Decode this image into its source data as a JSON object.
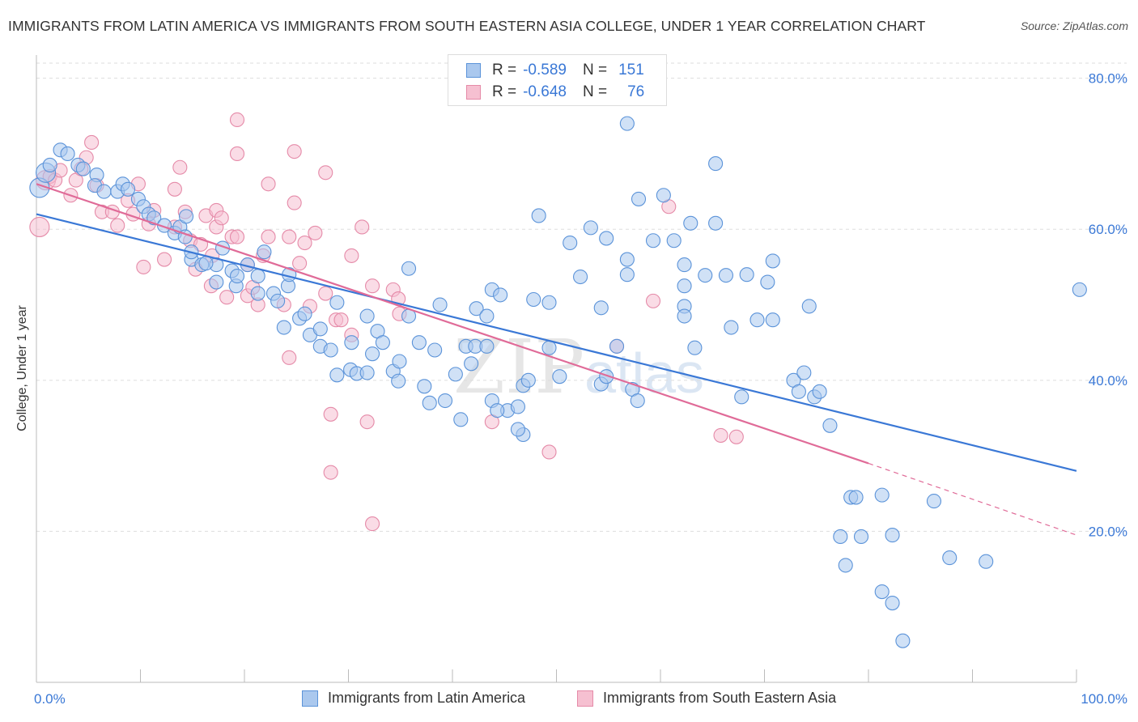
{
  "title": "IMMIGRANTS FROM LATIN AMERICA VS IMMIGRANTS FROM SOUTH EASTERN ASIA COLLEGE, UNDER 1 YEAR CORRELATION CHART",
  "source": "Source: ZipAtlas.com",
  "watermark": {
    "zip": "ZIP",
    "atlas": "atlas"
  },
  "legend": {
    "rows": [
      {
        "r_label": "R =",
        "r_value": "-0.589",
        "n_label": "N =",
        "n_value": "151"
      },
      {
        "r_label": "R =",
        "r_value": "-0.648",
        "n_label": "N =",
        "n_value": "76"
      }
    ]
  },
  "bottom_legend": {
    "latin": "Immigrants from Latin America",
    "asia": "Immigrants from South Eastern Asia"
  },
  "colors": {
    "blue": "#5b93d9",
    "blue_fill": "#aac8ee",
    "blue_line": "#3a78d6",
    "pink": "#e58aa8",
    "pink_fill": "#f6c0d1",
    "pink_line": "#e06b98",
    "grid": "#dddddd",
    "tick_text": "#3a78d6"
  },
  "chart_data": {
    "type": "scatter",
    "title": "IMMIGRANTS FROM LATIN AMERICA VS IMMIGRANTS FROM SOUTH EASTERN ASIA COLLEGE, UNDER 1 YEAR CORRELATION CHART",
    "xlabel": "",
    "ylabel": "College, Under 1 year",
    "xlim": [
      0,
      100
    ],
    "ylim": [
      0,
      82
    ],
    "x_tick_labels": [
      "0.0%",
      "100.0%"
    ],
    "y_ticks": [
      20,
      40,
      60,
      80
    ],
    "y_tick_labels": [
      "20.0%",
      "40.0%",
      "60.0%",
      "80.0%"
    ],
    "grid": true,
    "legend_position": "top-center",
    "series": [
      {
        "name": "Immigrants from Latin America",
        "color": "#5b93d9",
        "trend": {
          "x": [
            0,
            100
          ],
          "y": [
            62,
            28
          ]
        },
        "points": [
          [
            0.3,
            65.5
          ],
          [
            0.9,
            67.5
          ],
          [
            1.3,
            68.5
          ],
          [
            2.3,
            70.5
          ],
          [
            3.0,
            70
          ],
          [
            4.0,
            68.5
          ],
          [
            4.5,
            68
          ],
          [
            5.8,
            67.2
          ],
          [
            5.6,
            65.8
          ],
          [
            6.5,
            65
          ],
          [
            7.8,
            65
          ],
          [
            8.3,
            66
          ],
          [
            8.8,
            65.3
          ],
          [
            9.8,
            64
          ],
          [
            10.3,
            63
          ],
          [
            10.8,
            62
          ],
          [
            11.3,
            61.5
          ],
          [
            12.3,
            60.5
          ],
          [
            13.3,
            59.5
          ],
          [
            13.8,
            60.3
          ],
          [
            14.4,
            61.7
          ],
          [
            14.3,
            59
          ],
          [
            14.9,
            56
          ],
          [
            14.9,
            57
          ],
          [
            15.9,
            55.3
          ],
          [
            17.3,
            55.3
          ],
          [
            17.9,
            57.5
          ],
          [
            16.3,
            55.5
          ],
          [
            18.8,
            54.5
          ],
          [
            17.3,
            53
          ],
          [
            19.2,
            52.5
          ],
          [
            19.3,
            53.8
          ],
          [
            20.3,
            55.3
          ],
          [
            21.3,
            53.8
          ],
          [
            21.3,
            51.5
          ],
          [
            21.9,
            57
          ],
          [
            22.8,
            51.5
          ],
          [
            23.2,
            50.5
          ],
          [
            24.2,
            52.5
          ],
          [
            24.3,
            54
          ],
          [
            23.8,
            47
          ],
          [
            25.3,
            48.2
          ],
          [
            25.8,
            48.8
          ],
          [
            26.3,
            46
          ],
          [
            27.3,
            46.8
          ],
          [
            27.3,
            44.5
          ],
          [
            28.3,
            44
          ],
          [
            28.9,
            40.7
          ],
          [
            28.9,
            50.3
          ],
          [
            30.2,
            41.4
          ],
          [
            30.8,
            40.9
          ],
          [
            30.3,
            45
          ],
          [
            31.8,
            41
          ],
          [
            31.8,
            48.5
          ],
          [
            32.3,
            43.5
          ],
          [
            32.8,
            46.5
          ],
          [
            33.3,
            45
          ],
          [
            34.3,
            41.2
          ],
          [
            34.8,
            39.9
          ],
          [
            34.9,
            42.5
          ],
          [
            35.8,
            54.8
          ],
          [
            35.8,
            48.5
          ],
          [
            36.8,
            45
          ],
          [
            37.3,
            39.2
          ],
          [
            37.8,
            37
          ],
          [
            38.3,
            44
          ],
          [
            38.8,
            50
          ],
          [
            39.3,
            37.3
          ],
          [
            40.3,
            40.8
          ],
          [
            40.8,
            34.8
          ],
          [
            41.3,
            44.5
          ],
          [
            41.8,
            42.2
          ],
          [
            42.2,
            44.5
          ],
          [
            43.3,
            44.5
          ],
          [
            42.3,
            49.5
          ],
          [
            43.8,
            37.3
          ],
          [
            43.3,
            48.5
          ],
          [
            43.8,
            52
          ],
          [
            44.6,
            51.3
          ],
          [
            45.3,
            36
          ],
          [
            44.3,
            36
          ],
          [
            46.3,
            36.5
          ],
          [
            46.8,
            32.8
          ],
          [
            46.3,
            33.5
          ],
          [
            46.8,
            39.3
          ],
          [
            47.3,
            40
          ],
          [
            47.8,
            50.7
          ],
          [
            48.3,
            61.8
          ],
          [
            49.3,
            50.3
          ],
          [
            49.3,
            44.3
          ],
          [
            50.3,
            40.5
          ],
          [
            51.3,
            58.2
          ],
          [
            52.3,
            53.7
          ],
          [
            53.3,
            60.2
          ],
          [
            54.3,
            49.6
          ],
          [
            54.3,
            39.5
          ],
          [
            54.8,
            40.5
          ],
          [
            54.8,
            58.8
          ],
          [
            55.8,
            44.5
          ],
          [
            56.8,
            54
          ],
          [
            56.8,
            56
          ],
          [
            56.8,
            74
          ],
          [
            57.3,
            38.8
          ],
          [
            57.8,
            37.3
          ],
          [
            57.9,
            64
          ],
          [
            59.3,
            58.5
          ],
          [
            60.3,
            64.5
          ],
          [
            61.3,
            58.5
          ],
          [
            62.3,
            49.8
          ],
          [
            62.3,
            48.5
          ],
          [
            62.3,
            55.3
          ],
          [
            62.3,
            52.5
          ],
          [
            63.3,
            44.3
          ],
          [
            62.9,
            60.8
          ],
          [
            64.3,
            53.9
          ],
          [
            65.3,
            60.8
          ],
          [
            65.3,
            68.7
          ],
          [
            66.3,
            53.9
          ],
          [
            66.8,
            47
          ],
          [
            67.8,
            37.8
          ],
          [
            68.3,
            54
          ],
          [
            69.3,
            48
          ],
          [
            70.3,
            53
          ],
          [
            70.8,
            48
          ],
          [
            70.8,
            55.8
          ],
          [
            72.8,
            40
          ],
          [
            73.3,
            38.5
          ],
          [
            73.8,
            41
          ],
          [
            74.3,
            49.8
          ],
          [
            74.8,
            37.8
          ],
          [
            75.3,
            38.5
          ],
          [
            76.3,
            34
          ],
          [
            78.3,
            24.5
          ],
          [
            79.3,
            19.3
          ],
          [
            77.3,
            19.3
          ],
          [
            77.8,
            15.5
          ],
          [
            78.8,
            24.5
          ],
          [
            81.3,
            24.8
          ],
          [
            82.3,
            19.5
          ],
          [
            81.3,
            12
          ],
          [
            82.3,
            10.5
          ],
          [
            83.3,
            5.5
          ],
          [
            86.3,
            24
          ],
          [
            87.8,
            16.5
          ],
          [
            91.3,
            16
          ],
          [
            100.3,
            52
          ]
        ]
      },
      {
        "name": "Immigrants from South Eastern Asia",
        "color": "#e58aa8",
        "trend": {
          "x": [
            0,
            80
          ],
          "y": [
            66,
            29
          ]
        },
        "dashed_extension": {
          "x": [
            80,
            100
          ],
          "y": [
            29,
            19.5
          ]
        },
        "points": [
          [
            0.3,
            60.3
          ],
          [
            0.9,
            66.5
          ],
          [
            1.3,
            67
          ],
          [
            1.8,
            66.5
          ],
          [
            2.3,
            67.8
          ],
          [
            3.3,
            64.5
          ],
          [
            3.8,
            66.5
          ],
          [
            4.3,
            68
          ],
          [
            4.8,
            69.5
          ],
          [
            5.3,
            71.5
          ],
          [
            5.8,
            65.8
          ],
          [
            6.3,
            62.3
          ],
          [
            7.3,
            62.3
          ],
          [
            7.8,
            60.5
          ],
          [
            8.8,
            63.8
          ],
          [
            9.3,
            62
          ],
          [
            9.8,
            66
          ],
          [
            10.3,
            55
          ],
          [
            10.8,
            60.7
          ],
          [
            11.3,
            62.5
          ],
          [
            12.3,
            56
          ],
          [
            13.3,
            60.3
          ],
          [
            13.3,
            65.3
          ],
          [
            13.8,
            68.2
          ],
          [
            14.3,
            62.3
          ],
          [
            14.8,
            58.5
          ],
          [
            15.3,
            54.7
          ],
          [
            15.8,
            58
          ],
          [
            16.3,
            61.8
          ],
          [
            16.8,
            52.5
          ],
          [
            16.9,
            56.5
          ],
          [
            17.3,
            60.3
          ],
          [
            17.3,
            62.5
          ],
          [
            17.8,
            61.5
          ],
          [
            18.3,
            51
          ],
          [
            18.8,
            59
          ],
          [
            19.3,
            59
          ],
          [
            19.3,
            70
          ],
          [
            19.3,
            74.5
          ],
          [
            20.3,
            55.3
          ],
          [
            20.3,
            51.2
          ],
          [
            20.8,
            52.3
          ],
          [
            21.3,
            50
          ],
          [
            21.8,
            56.5
          ],
          [
            22.3,
            59
          ],
          [
            22.3,
            66
          ],
          [
            23.8,
            50
          ],
          [
            24.3,
            59
          ],
          [
            24.3,
            43
          ],
          [
            24.8,
            63.5
          ],
          [
            24.8,
            70.3
          ],
          [
            25.3,
            55.5
          ],
          [
            25.8,
            58.2
          ],
          [
            26.3,
            49.8
          ],
          [
            26.8,
            59.5
          ],
          [
            27.8,
            51.5
          ],
          [
            27.8,
            67.5
          ],
          [
            28.3,
            35.5
          ],
          [
            28.3,
            27.8
          ],
          [
            28.8,
            48
          ],
          [
            29.3,
            48
          ],
          [
            30.3,
            56.5
          ],
          [
            30.3,
            46
          ],
          [
            31.3,
            60.3
          ],
          [
            31.8,
            34.5
          ],
          [
            32.3,
            52.5
          ],
          [
            32.3,
            21
          ],
          [
            34.3,
            52
          ],
          [
            34.8,
            50.8
          ],
          [
            34.9,
            48.8
          ],
          [
            43.8,
            34.5
          ],
          [
            49.3,
            30.5
          ],
          [
            55.8,
            44.5
          ],
          [
            59.3,
            50.5
          ],
          [
            60.8,
            63
          ],
          [
            65.8,
            32.7
          ],
          [
            67.3,
            32.5
          ]
        ]
      }
    ]
  }
}
